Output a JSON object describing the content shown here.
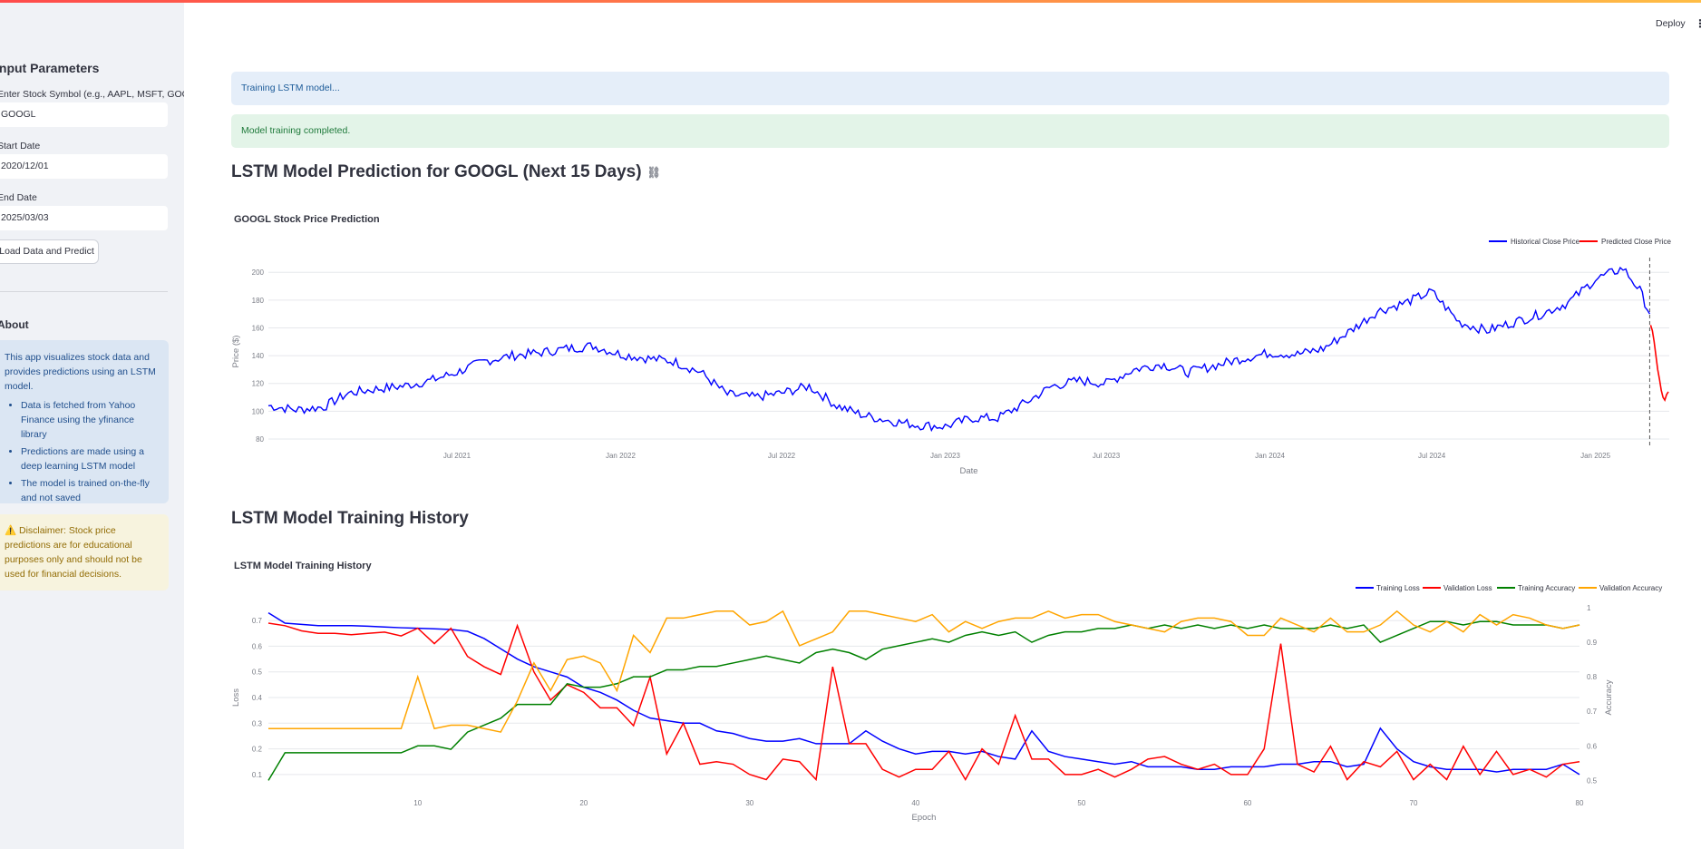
{
  "sidebar": {
    "title": "Input Parameters",
    "symbol_label": "Enter Stock Symbol (e.g., AAPL, MSFT, GOOGL)",
    "symbol_value": "GOOGL",
    "start_label": "Start Date",
    "start_value": "2020/12/01",
    "end_label": "End Date",
    "end_value": "2025/03/03",
    "button_label": "Load Data and Predict",
    "about_title": "About",
    "about_text": "This app visualizes stock data and provides predictions using an LSTM model.",
    "about_items": [
      "Data is fetched from Yahoo Finance using the yfinance library",
      "Predictions are made using a deep learning LSTM model",
      "The model is trained on-the-fly and not saved"
    ],
    "disclaimer": "⚠️ Disclaimer: Stock price predictions are for educational purposes only and should not be used for financial decisions."
  },
  "header": {
    "deploy_label": "Deploy",
    "menu_icon": "vertical-dots-icon"
  },
  "alerts": {
    "training": "Training LSTM model...",
    "completed": "Model training completed."
  },
  "main": {
    "prediction_heading": "LSTM Model Prediction for GOOGL (Next 15 Days)",
    "history_heading": "LSTM Model Training History"
  },
  "colors": {
    "blue": "#0000ff",
    "red": "#ff0000",
    "green": "#008000",
    "orange": "#ffa500",
    "accent": "#ff4b4b"
  },
  "chart_data": [
    {
      "type": "line",
      "title": "GOOGL Stock Price Prediction",
      "xlabel": "Date",
      "ylabel": "Price ($)",
      "x_ticks": [
        "Jul 2021",
        "Jan 2022",
        "Jul 2022",
        "Jan 2023",
        "Jul 2023",
        "Jan 2024",
        "Jul 2024",
        "Jan 2025"
      ],
      "y_ticks": [
        80,
        100,
        120,
        140,
        160,
        180,
        200
      ],
      "ylim": [
        78,
        208
      ],
      "xlim": [
        "2020-12-01",
        "2025-03-25"
      ],
      "legend": "top-right",
      "series": [
        {
          "name": "Historical Close Price",
          "color": "#0000ff",
          "points": [
            [
              "2020-12-01",
              104
            ],
            [
              "2021-01-01",
              101
            ],
            [
              "2021-02-01",
              103
            ],
            [
              "2021-03-01",
              113
            ],
            [
              "2021-04-01",
              116
            ],
            [
              "2021-05-01",
              118
            ],
            [
              "2021-06-01",
              122
            ],
            [
              "2021-07-01",
              128
            ],
            [
              "2021-08-01",
              136
            ],
            [
              "2021-09-01",
              140
            ],
            [
              "2021-10-01",
              142
            ],
            [
              "2021-11-01",
              145
            ],
            [
              "2021-12-01",
              147
            ],
            [
              "2022-01-01",
              141
            ],
            [
              "2022-02-01",
              138
            ],
            [
              "2022-03-01",
              136
            ],
            [
              "2022-04-01",
              128
            ],
            [
              "2022-05-01",
              112
            ],
            [
              "2022-06-01",
              110
            ],
            [
              "2022-07-01",
              113
            ],
            [
              "2022-08-01",
              118
            ],
            [
              "2022-09-01",
              104
            ],
            [
              "2022-10-01",
              97
            ],
            [
              "2022-11-01",
              93
            ],
            [
              "2022-12-01",
              90
            ],
            [
              "2023-01-01",
              89
            ],
            [
              "2023-02-01",
              95
            ],
            [
              "2023-03-01",
              95
            ],
            [
              "2023-04-01",
              106
            ],
            [
              "2023-05-01",
              118
            ],
            [
              "2023-06-01",
              122
            ],
            [
              "2023-07-01",
              120
            ],
            [
              "2023-08-01",
              130
            ],
            [
              "2023-09-01",
              134
            ],
            [
              "2023-10-01",
              128
            ],
            [
              "2023-11-01",
              133
            ],
            [
              "2023-12-01",
              138
            ],
            [
              "2024-01-01",
              142
            ],
            [
              "2024-02-01",
              141
            ],
            [
              "2024-03-01",
              145
            ],
            [
              "2024-04-01",
              158
            ],
            [
              "2024-05-01",
              172
            ],
            [
              "2024-06-01",
              178
            ],
            [
              "2024-07-01",
              186
            ],
            [
              "2024-08-01",
              164
            ],
            [
              "2024-09-01",
              158
            ],
            [
              "2024-10-01",
              164
            ],
            [
              "2024-11-01",
              170
            ],
            [
              "2024-12-01",
              178
            ],
            [
              "2025-01-01",
              195
            ],
            [
              "2025-02-01",
              203
            ],
            [
              "2025-02-20",
              187
            ],
            [
              "2025-03-03",
              170
            ]
          ]
        },
        {
          "name": "Predicted Close Price",
          "color": "#ff0000",
          "points": [
            [
              "2025-03-04",
              162
            ],
            [
              "2025-03-06",
              158
            ],
            [
              "2025-03-08",
              150
            ],
            [
              "2025-03-10",
              140
            ],
            [
              "2025-03-12",
              130
            ],
            [
              "2025-03-14",
              123
            ],
            [
              "2025-03-16",
              115
            ],
            [
              "2025-03-18",
              110
            ],
            [
              "2025-03-20",
              108
            ],
            [
              "2025-03-22",
              112
            ],
            [
              "2025-03-24",
              114
            ]
          ]
        }
      ]
    },
    {
      "type": "line",
      "title": "LSTM Model Training History",
      "xlabel": "Epoch",
      "ylabel": "Loss",
      "y2label": "Accuracy",
      "x_ticks": [
        10,
        20,
        30,
        40,
        50,
        60,
        70,
        80
      ],
      "y_ticks": [
        0.1,
        0.2,
        0.3,
        0.4,
        0.5,
        0.6,
        0.7
      ],
      "y2_ticks": [
        0.5,
        0.6,
        0.7,
        0.8,
        0.9,
        1
      ],
      "xlim": [
        1,
        80
      ],
      "ylim": [
        0.05,
        0.75
      ],
      "y2lim": [
        0.48,
        1.0
      ],
      "legend": "top-right",
      "series": [
        {
          "name": "Training Loss",
          "color": "#0000ff",
          "axis": "left",
          "values": [
            0.73,
            0.69,
            0.685,
            0.68,
            0.68,
            0.68,
            0.678,
            0.675,
            0.672,
            0.67,
            0.668,
            0.665,
            0.658,
            0.63,
            0.59,
            0.55,
            0.52,
            0.5,
            0.48,
            0.44,
            0.42,
            0.39,
            0.35,
            0.32,
            0.31,
            0.3,
            0.3,
            0.27,
            0.26,
            0.24,
            0.23,
            0.23,
            0.24,
            0.22,
            0.22,
            0.22,
            0.27,
            0.23,
            0.2,
            0.18,
            0.19,
            0.19,
            0.18,
            0.19,
            0.17,
            0.16,
            0.27,
            0.19,
            0.17,
            0.16,
            0.15,
            0.14,
            0.15,
            0.13,
            0.13,
            0.13,
            0.12,
            0.12,
            0.13,
            0.13,
            0.13,
            0.14,
            0.14,
            0.15,
            0.15,
            0.13,
            0.14,
            0.28,
            0.2,
            0.15,
            0.13,
            0.12,
            0.12,
            0.12,
            0.11,
            0.12,
            0.12,
            0.12,
            0.14,
            0.1
          ]
        },
        {
          "name": "Validation Loss",
          "color": "#ff0000",
          "axis": "left",
          "values": [
            0.69,
            0.68,
            0.66,
            0.65,
            0.65,
            0.645,
            0.65,
            0.655,
            0.64,
            0.67,
            0.61,
            0.67,
            0.56,
            0.52,
            0.49,
            0.68,
            0.5,
            0.39,
            0.45,
            0.42,
            0.36,
            0.36,
            0.29,
            0.48,
            0.18,
            0.3,
            0.14,
            0.15,
            0.14,
            0.1,
            0.08,
            0.16,
            0.15,
            0.08,
            0.52,
            0.22,
            0.22,
            0.12,
            0.09,
            0.12,
            0.12,
            0.19,
            0.08,
            0.2,
            0.14,
            0.33,
            0.16,
            0.16,
            0.1,
            0.1,
            0.12,
            0.09,
            0.12,
            0.16,
            0.17,
            0.14,
            0.12,
            0.14,
            0.1,
            0.1,
            0.2,
            0.61,
            0.14,
            0.11,
            0.21,
            0.08,
            0.15,
            0.13,
            0.19,
            0.08,
            0.14,
            0.08,
            0.21,
            0.1,
            0.19,
            0.1,
            0.12,
            0.09,
            0.14,
            0.15
          ]
        },
        {
          "name": "Training Accuracy",
          "color": "#008000",
          "axis": "right",
          "values": [
            0.5,
            0.58,
            0.58,
            0.58,
            0.58,
            0.58,
            0.58,
            0.58,
            0.58,
            0.6,
            0.6,
            0.59,
            0.64,
            0.66,
            0.68,
            0.72,
            0.72,
            0.72,
            0.78,
            0.77,
            0.77,
            0.78,
            0.8,
            0.8,
            0.82,
            0.82,
            0.83,
            0.83,
            0.84,
            0.85,
            0.86,
            0.85,
            0.84,
            0.87,
            0.88,
            0.87,
            0.85,
            0.88,
            0.89,
            0.9,
            0.91,
            0.9,
            0.92,
            0.93,
            0.92,
            0.93,
            0.9,
            0.92,
            0.93,
            0.93,
            0.94,
            0.94,
            0.95,
            0.94,
            0.95,
            0.94,
            0.95,
            0.94,
            0.95,
            0.94,
            0.95,
            0.94,
            0.94,
            0.94,
            0.95,
            0.94,
            0.95,
            0.9,
            0.92,
            0.94,
            0.96,
            0.96,
            0.95,
            0.96,
            0.96,
            0.95,
            0.95,
            0.95,
            0.94,
            0.95
          ]
        },
        {
          "name": "Validation Accuracy",
          "color": "#ffa500",
          "axis": "right",
          "values": [
            0.65,
            0.65,
            0.65,
            0.65,
            0.65,
            0.65,
            0.65,
            0.65,
            0.65,
            0.8,
            0.65,
            0.66,
            0.66,
            0.65,
            0.64,
            0.73,
            0.84,
            0.76,
            0.85,
            0.86,
            0.84,
            0.76,
            0.92,
            0.87,
            0.97,
            0.97,
            0.98,
            0.99,
            0.99,
            0.95,
            0.96,
            0.99,
            0.89,
            0.91,
            0.93,
            0.99,
            0.99,
            0.98,
            0.97,
            0.96,
            0.98,
            0.93,
            0.96,
            0.94,
            0.96,
            0.97,
            0.97,
            0.99,
            0.97,
            0.98,
            0.98,
            0.96,
            0.95,
            0.94,
            0.93,
            0.96,
            0.97,
            0.97,
            0.96,
            0.92,
            0.92,
            0.97,
            0.95,
            0.93,
            0.97,
            0.93,
            0.93,
            0.95,
            0.99,
            0.95,
            0.93,
            0.96,
            0.93,
            0.98,
            0.95,
            0.98,
            0.97,
            0.95,
            0.94,
            0.95
          ]
        }
      ]
    }
  ]
}
